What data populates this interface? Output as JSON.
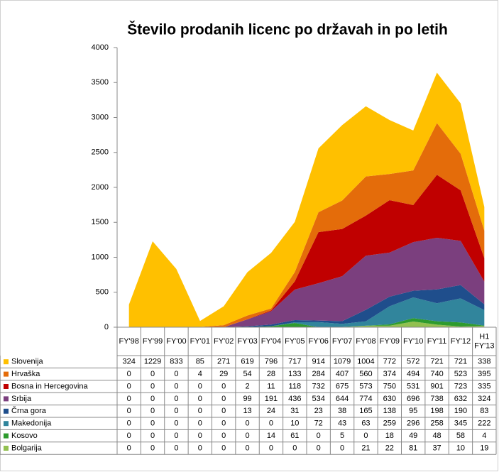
{
  "chart_data": {
    "type": "stacked_area",
    "title": "Število prodanih licenc po državah in po letih",
    "categories": [
      "FY'98",
      "FY'99",
      "FY'00",
      "FY'01",
      "FY'02",
      "FY'03",
      "FY'04",
      "FY'05",
      "FY'06",
      "FY'07",
      "FY'08",
      "FY'09",
      "FY'10",
      "FY'11",
      "FY'12",
      "H1 FY'13"
    ],
    "ylim": [
      0,
      4000
    ],
    "yticks": [
      0,
      500,
      1000,
      1500,
      2000,
      2500,
      3000,
      3500,
      4000
    ],
    "series": [
      {
        "name": "Slovenija",
        "color": "#ffc000",
        "values": [
          324,
          1229,
          833,
          85,
          271,
          619,
          796,
          717,
          914,
          1079,
          1004,
          772,
          572,
          721,
          721,
          338
        ]
      },
      {
        "name": "Hrvaška",
        "color": "#e46c0a",
        "values": [
          0,
          0,
          0,
          4,
          29,
          54,
          28,
          133,
          284,
          407,
          560,
          374,
          494,
          740,
          523,
          395
        ]
      },
      {
        "name": "Bosna in Hercegovina",
        "color": "#c00000",
        "values": [
          0,
          0,
          0,
          0,
          0,
          2,
          11,
          118,
          732,
          675,
          573,
          750,
          531,
          901,
          723,
          335
        ]
      },
      {
        "name": "Srbija",
        "color": "#7b3f7e",
        "values": [
          0,
          0,
          0,
          0,
          0,
          99,
          191,
          436,
          534,
          644,
          774,
          630,
          696,
          738,
          632,
          324
        ]
      },
      {
        "name": "Črna gora",
        "color": "#1f4e8c",
        "values": [
          0,
          0,
          0,
          0,
          0,
          13,
          24,
          31,
          23,
          38,
          165,
          138,
          95,
          198,
          190,
          83
        ]
      },
      {
        "name": "Makedonija",
        "color": "#31859c",
        "values": [
          0,
          0,
          0,
          0,
          0,
          0,
          0,
          10,
          72,
          43,
          63,
          259,
          296,
          258,
          345,
          222
        ]
      },
      {
        "name": "Kosovo",
        "color": "#2e9b2e",
        "values": [
          0,
          0,
          0,
          0,
          0,
          0,
          14,
          61,
          0,
          5,
          0,
          18,
          49,
          48,
          58,
          4
        ]
      },
      {
        "name": "Bolgarija",
        "color": "#92c050",
        "values": [
          0,
          0,
          0,
          0,
          0,
          0,
          0,
          0,
          0,
          0,
          21,
          22,
          81,
          37,
          10,
          19
        ]
      }
    ]
  }
}
